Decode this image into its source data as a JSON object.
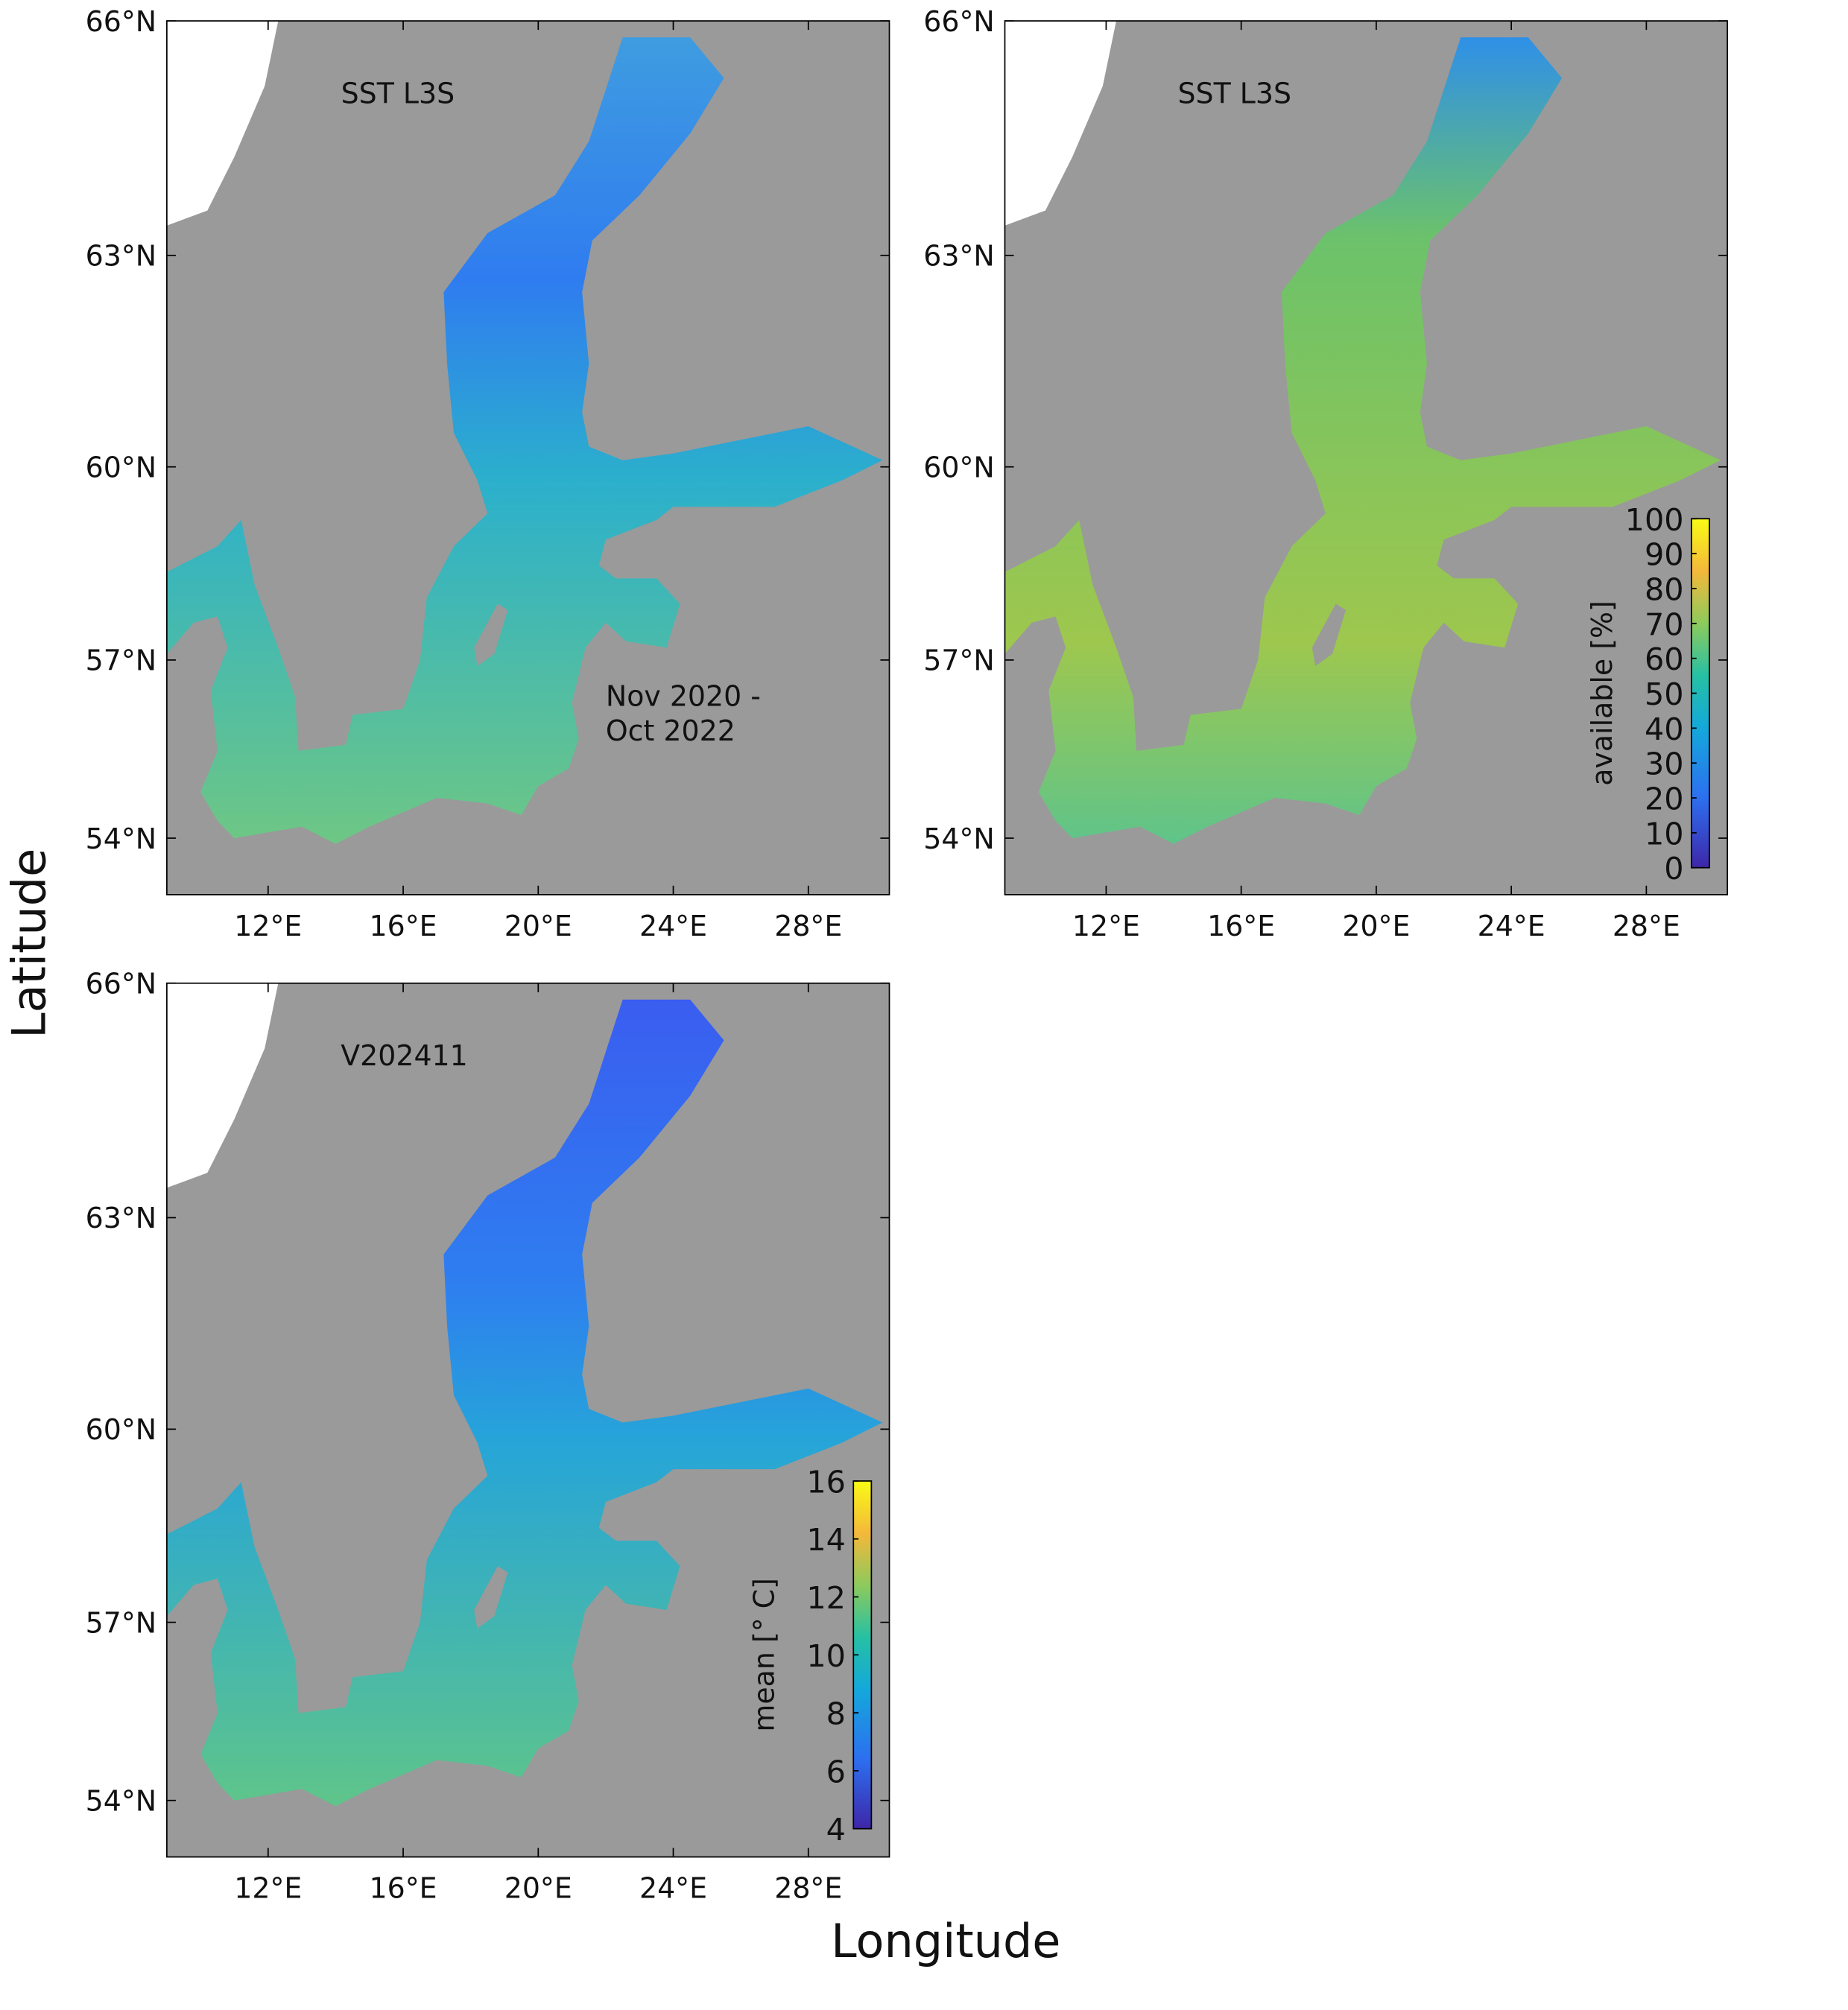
{
  "panels": [
    {
      "type": "map",
      "annotations": [
        "SST L3S",
        "Nov 2020 -",
        "Oct 2022"
      ],
      "xlim": [
        9,
        30.4
      ],
      "ylim": [
        53,
        66
      ],
      "xticks": [
        {
          "value": 12,
          "label": "12°E"
        },
        {
          "value": 16,
          "label": "16°E"
        },
        {
          "value": 20,
          "label": "20°E"
        },
        {
          "value": 24,
          "label": "24°E"
        },
        {
          "value": 28,
          "label": "28°E"
        }
      ],
      "yticks": [
        {
          "value": 54,
          "label": "54°N"
        },
        {
          "value": 57,
          "label": "57°N"
        },
        {
          "value": 60,
          "label": "60°N"
        },
        {
          "value": 63,
          "label": "63°N"
        },
        {
          "value": 66,
          "label": "66°N"
        }
      ]
    },
    {
      "type": "map",
      "annotations": [
        "SST L3S"
      ],
      "xlim": [
        9,
        30.4
      ],
      "ylim": [
        53,
        66
      ],
      "xticks": [
        {
          "value": 12,
          "label": "12°E"
        },
        {
          "value": 16,
          "label": "16°E"
        },
        {
          "value": 20,
          "label": "20°E"
        },
        {
          "value": 24,
          "label": "24°E"
        },
        {
          "value": 28,
          "label": "28°E"
        }
      ],
      "yticks": [
        {
          "value": 54,
          "label": "54°N"
        },
        {
          "value": 57,
          "label": "57°N"
        },
        {
          "value": 60,
          "label": "60°N"
        },
        {
          "value": 63,
          "label": "63°N"
        },
        {
          "value": 66,
          "label": "66°N"
        }
      ],
      "colorbar": {
        "label": "available [%]",
        "lim": [
          0,
          100
        ],
        "ticks": [
          0,
          10,
          20,
          30,
          40,
          50,
          60,
          70,
          80,
          90,
          100
        ]
      }
    },
    {
      "type": "map",
      "annotations": [
        "V202411"
      ],
      "xlim": [
        9,
        30.4
      ],
      "ylim": [
        53,
        66
      ],
      "xticks": [
        {
          "value": 12,
          "label": "12°E"
        },
        {
          "value": 16,
          "label": "16°E"
        },
        {
          "value": 20,
          "label": "20°E"
        },
        {
          "value": 24,
          "label": "24°E"
        },
        {
          "value": 28,
          "label": "28°E"
        }
      ],
      "yticks": [
        {
          "value": 54,
          "label": "54°N"
        },
        {
          "value": 57,
          "label": "57°N"
        },
        {
          "value": 60,
          "label": "60°N"
        },
        {
          "value": 63,
          "label": "63°N"
        },
        {
          "value": 66,
          "label": "66°N"
        }
      ],
      "colorbar": {
        "label": "mean [° C]",
        "lim": [
          4,
          16
        ],
        "ticks": [
          4,
          6,
          8,
          10,
          12,
          14,
          16
        ]
      }
    }
  ],
  "xlabel": "Longitude",
  "ylabel": "Latitude"
}
